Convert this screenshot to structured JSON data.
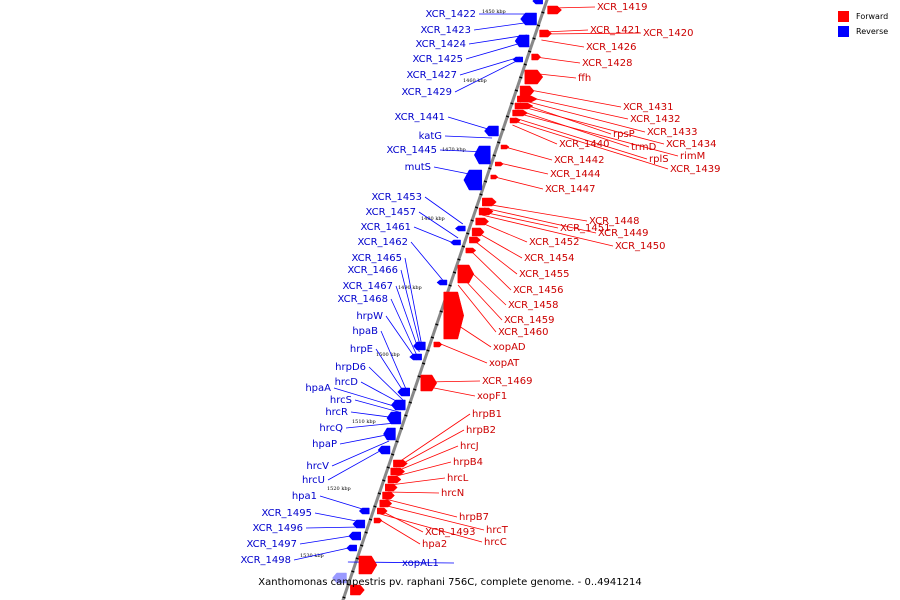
{
  "caption": "Xanthomonas campestris pv. raphani 756C, complete genome. - 0..4941214",
  "colors": {
    "forward": "#ff0000",
    "reverse": "#0000ff",
    "forward_label": "#cc0000",
    "reverse_label": "#0000cc",
    "backbone": "#888888"
  },
  "legend": [
    {
      "label": "Forward",
      "color": "#ff0000"
    },
    {
      "label": "Reverse",
      "color": "#0000ff"
    }
  ],
  "ticks": [
    "1450 kbp",
    "1460 kbp",
    "1470 kbp",
    "1480 kbp",
    "1490 kbp",
    "1500 kbp",
    "1510 kbp",
    "1520 kbp",
    "1530 kbp"
  ],
  "forward_genes": [
    "XCR_1419",
    "XCR_1421",
    "XCR_1420",
    "XCR_1426",
    "XCR_1428",
    "ffh",
    "XCR_1431",
    "XCR_1432",
    "rpsP",
    "XCR_1433",
    "trmD",
    "XCR_1434",
    "rplS",
    "rimM",
    "XCR_1439",
    "XCR_1440",
    "XCR_1442",
    "XCR_1444",
    "XCR_1447",
    "XCR_1448",
    "XCR_1449",
    "XCR_1451",
    "XCR_1450",
    "XCR_1452",
    "XCR_1454",
    "XCR_1455",
    "XCR_1456",
    "XCR_1458",
    "XCR_1459",
    "XCR_1460",
    "xopAD",
    "xopAT",
    "XCR_1469",
    "xopF1",
    "hrpB1",
    "hrpB2",
    "hrcJ",
    "hrpB4",
    "hrcL",
    "hrcN",
    "hrpB7",
    "hrcT",
    "XCR_1493",
    "hrcC",
    "hpa2"
  ],
  "reverse_genes": [
    "XCR_1422",
    "XCR_1423",
    "XCR_1424",
    "XCR_1425",
    "XCR_1427",
    "XCR_1429",
    "XCR_1441",
    "katG",
    "XCR_1445",
    "mutS",
    "XCR_1453",
    "XCR_1457",
    "XCR_1461",
    "XCR_1462",
    "XCR_1465",
    "XCR_1466",
    "XCR_1467",
    "XCR_1468",
    "hrpW",
    "hpaB",
    "hrpE",
    "hrpD6",
    "hrcD",
    "hpaA",
    "hrcS",
    "hrcR",
    "hrcQ",
    "hpaP",
    "hrcV",
    "hrcU",
    "hpa1",
    "XCR_1495",
    "XCR_1496",
    "XCR_1497",
    "XCR_1498",
    "xopAL1"
  ]
}
